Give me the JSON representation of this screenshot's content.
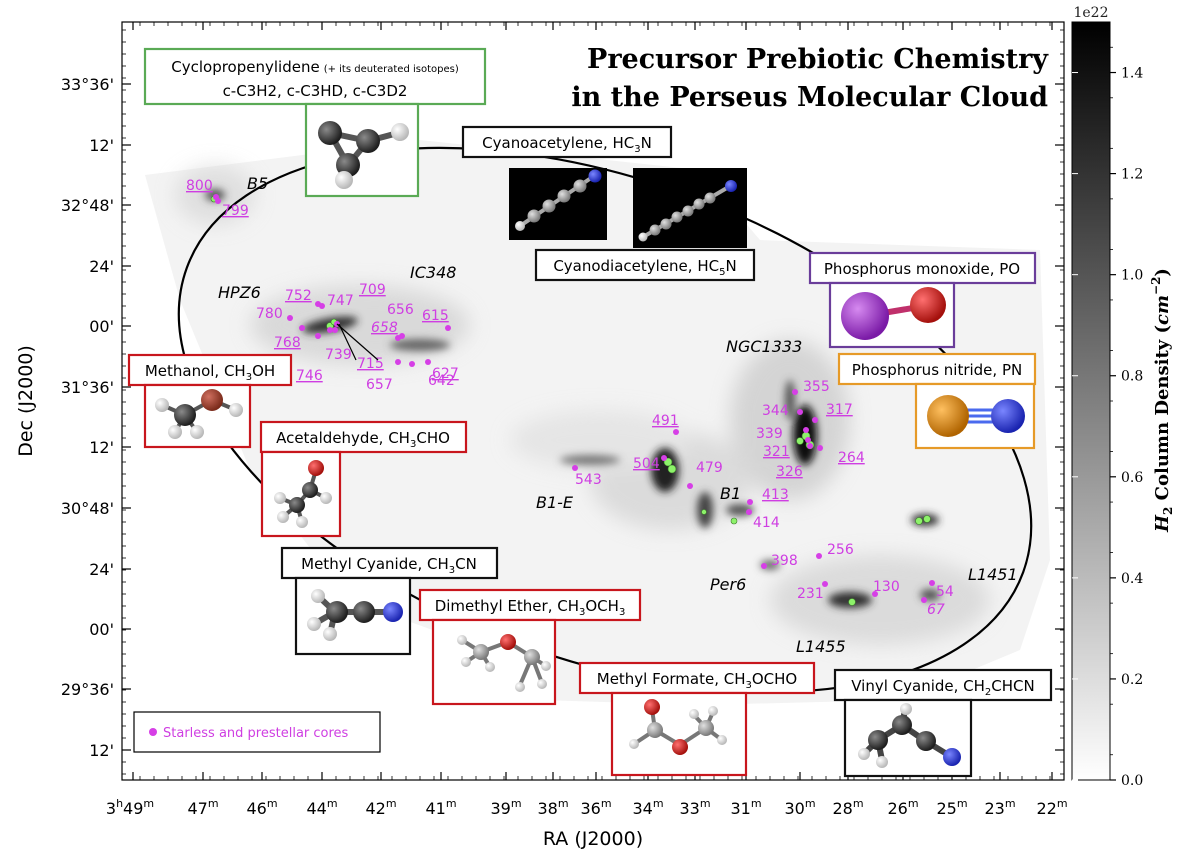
{
  "title": {
    "line1": "Precursor Prebiotic Chemistry",
    "line2": "in the Perseus Molecular Cloud"
  },
  "axes": {
    "xlabel": "RA (J2000)",
    "ylabel": "Dec (J2000)",
    "ra_hours_prefix": "3",
    "ra_ticks": [
      "49",
      "47",
      "46",
      "44",
      "42",
      "41",
      "39",
      "38",
      "36",
      "34",
      "33",
      "31",
      "30",
      "28",
      "26",
      "25",
      "23",
      "22"
    ],
    "dec_ticks": [
      "33°36'",
      "12'",
      "32°48'",
      "24'",
      "00'",
      "31°36'",
      "12'",
      "30°48'",
      "24'",
      "00'",
      "29°36'",
      "12'"
    ]
  },
  "colorbar": {
    "label": "H2 Column Density (cm^-2)",
    "label_main": "H",
    "label_sub": "2",
    "label_rest": " Column Density (",
    "label_unit": "cm",
    "label_exp": "−2",
    "label_close": ")",
    "scale_text": "1e22",
    "ticks": [
      "0.0",
      "0.2",
      "0.4",
      "0.6",
      "0.8",
      "1.0",
      "1.2",
      "1.4"
    ],
    "range": [
      0.0,
      1.5
    ]
  },
  "regions": [
    "B5",
    "IC348",
    "HPZ6",
    "NGC1333",
    "B1-E",
    "B1",
    "Per6",
    "L1451",
    "L1455"
  ],
  "legend": {
    "marker_label": "Starless and prestellar cores",
    "marker_color": "#d63fe6"
  },
  "colors": {
    "green_frame": "#5aaa55",
    "red_frame": "#c8161d",
    "purple_frame": "#6a3d9a",
    "orange_frame": "#e69a28",
    "black_frame": "#111111",
    "core_label": "#cf3ee2",
    "green_core": "#8df26a"
  },
  "molecules": {
    "cyclopropenylidene": {
      "name": "Cyclopropenylidene",
      "note": "(+ its deuterated isotopes)",
      "formula": "c-C3H2, c-C3HD, c-C3D2"
    },
    "cyanoacetylene": {
      "name": "Cyanoacetylene, HC",
      "sub": "3",
      "tail": "N"
    },
    "cyanodiacetylene": {
      "name": "Cyanodiacetylene, HC",
      "sub": "5",
      "tail": "N"
    },
    "phosphorus_monoxide": {
      "name": "Phosphorus monoxide, PO"
    },
    "phosphorus_nitride": {
      "name": "Phosphorus nitride, PN"
    },
    "methanol": {
      "name": "Methanol, CH",
      "sub": "3",
      "tail": "OH"
    },
    "acetaldehyde": {
      "name": "Acetaldehyde, CH",
      "sub": "3",
      "tail": "CHO"
    },
    "methyl_cyanide": {
      "name": "Methyl Cyanide, CH",
      "sub": "3",
      "tail": "CN"
    },
    "dimethyl_ether": {
      "name": "Dimethyl Ether, CH",
      "sub": "3",
      "mid": "OCH",
      "sub2": "3"
    },
    "methyl_formate": {
      "name": "Methyl Formate, CH",
      "sub": "3",
      "tail": "OCHO"
    },
    "vinyl_cyanide": {
      "name": "Vinyl Cyanide, CH",
      "sub": "2",
      "tail": "CHCN"
    }
  },
  "cores": [
    {
      "label": "800",
      "underline": true,
      "italic": false
    },
    {
      "label": "799",
      "underline": true,
      "italic": false
    },
    {
      "label": "752",
      "underline": true,
      "italic": false
    },
    {
      "label": "747",
      "underline": false,
      "italic": false
    },
    {
      "label": "709",
      "underline": true,
      "italic": false
    },
    {
      "label": "656",
      "underline": false,
      "italic": false
    },
    {
      "label": "780",
      "underline": false,
      "italic": false
    },
    {
      "label": "658",
      "underline": true,
      "italic": true
    },
    {
      "label": "615",
      "underline": true,
      "italic": false
    },
    {
      "label": "768",
      "underline": true,
      "italic": false
    },
    {
      "label": "739",
      "underline": false,
      "italic": false
    },
    {
      "label": "715",
      "underline": true,
      "italic": false
    },
    {
      "label": "746",
      "underline": true,
      "italic": false
    },
    {
      "label": "657",
      "underline": false,
      "italic": false
    },
    {
      "label": "642",
      "underline": false,
      "italic": false
    },
    {
      "label": "627",
      "underline": true,
      "italic": false
    },
    {
      "label": "355",
      "underline": false,
      "italic": false
    },
    {
      "label": "344",
      "underline": false,
      "italic": false
    },
    {
      "label": "317",
      "underline": true,
      "italic": false
    },
    {
      "label": "339",
      "underline": false,
      "italic": false
    },
    {
      "label": "321",
      "underline": true,
      "italic": false
    },
    {
      "label": "326",
      "underline": true,
      "italic": false
    },
    {
      "label": "264",
      "underline": true,
      "italic": false
    },
    {
      "label": "491",
      "underline": true,
      "italic": false
    },
    {
      "label": "504",
      "underline": true,
      "italic": false
    },
    {
      "label": "479",
      "underline": false,
      "italic": false
    },
    {
      "label": "543",
      "underline": false,
      "italic": false
    },
    {
      "label": "413",
      "underline": true,
      "italic": false
    },
    {
      "label": "414",
      "underline": false,
      "italic": false
    },
    {
      "label": "398",
      "underline": false,
      "italic": false
    },
    {
      "label": "256",
      "underline": false,
      "italic": false
    },
    {
      "label": "231",
      "underline": false,
      "italic": false
    },
    {
      "label": "130",
      "underline": false,
      "italic": false
    },
    {
      "label": "54",
      "underline": false,
      "italic": false
    },
    {
      "label": "67",
      "underline": false,
      "italic": true
    }
  ]
}
